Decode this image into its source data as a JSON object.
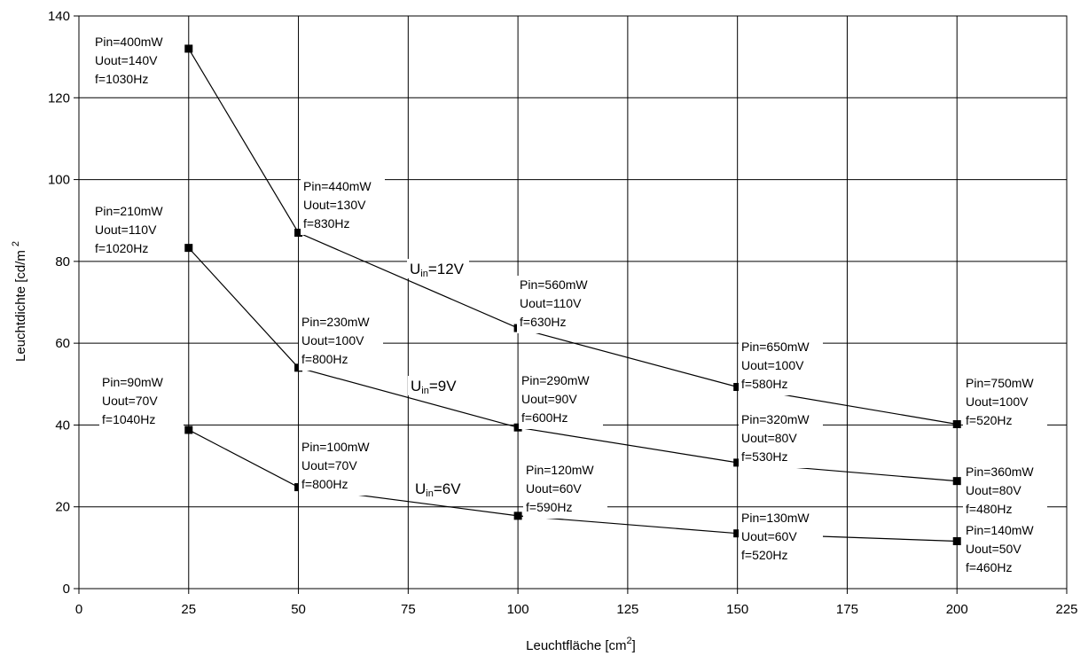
{
  "chart_data": {
    "type": "line",
    "xlabel": "Leuchtfläche [cm",
    "xlabel_sup": "2",
    "xlabel_end": "]",
    "ylabel": "Leuchtdichte [cd/m",
    "ylabel_sup": "2",
    "xlim": [
      0,
      225
    ],
    "ylim": [
      0,
      140
    ],
    "xticks": [
      0,
      25,
      50,
      75,
      100,
      125,
      150,
      175,
      200,
      225
    ],
    "yticks": [
      0,
      20,
      40,
      60,
      80,
      100,
      120,
      140
    ],
    "grid": true,
    "line_color": "#000000",
    "marker": "square",
    "series": [
      {
        "label_main": "U",
        "label_sub": "in",
        "label_rest": "=12V",
        "x": [
          25,
          50,
          100,
          150,
          200
        ],
        "y": [
          132,
          87,
          63.7,
          49.3,
          40.2
        ],
        "annotations": [
          [
            "Pin=400mW",
            "Uout=140V",
            "f=1030Hz"
          ],
          [
            "Pin=440mW",
            "Uout=130V",
            "f=830Hz"
          ],
          [
            "Pin=560mW",
            "Uout=110V",
            "f=630Hz"
          ],
          [
            "Pin=650mW",
            "Uout=100V",
            "f=580Hz"
          ],
          [
            "Pin=750mW",
            "Uout=100V",
            "f=520Hz"
          ]
        ]
      },
      {
        "label_main": "U",
        "label_sub": "in",
        "label_rest": "=9V",
        "x": [
          25,
          50,
          100,
          150,
          200
        ],
        "y": [
          83.3,
          54,
          39.4,
          30.8,
          26.3
        ],
        "annotations": [
          [
            "Pin=210mW",
            "Uout=110V",
            "f=1020Hz"
          ],
          [
            "Pin=230mW",
            "Uout=100V",
            "f=800Hz"
          ],
          [
            "Pin=290mW",
            "Uout=90V",
            "f=600Hz"
          ],
          [
            "Pin=320mW",
            "Uout=80V",
            "f=530Hz"
          ],
          [
            "Pin=360mW",
            "Uout=80V",
            "f=480Hz"
          ]
        ]
      },
      {
        "label_main": "U",
        "label_sub": "in",
        "label_rest": "=6V",
        "x": [
          25,
          50,
          100,
          150,
          200
        ],
        "y": [
          38.8,
          24.8,
          17.8,
          13.5,
          11.6
        ],
        "annotations": [
          [
            "Pin=90mW",
            "Uout=70V",
            "f=1040Hz"
          ],
          [
            "Pin=100mW",
            "Uout=70V",
            "f=800Hz"
          ],
          [
            "Pin=120mW",
            "Uout=60V",
            "f=590Hz"
          ],
          [
            "Pin=130mW",
            "Uout=60V",
            "f=520Hz"
          ],
          [
            "Pin=140mW",
            "Uout=50V",
            "f=460Hz"
          ]
        ]
      }
    ]
  }
}
